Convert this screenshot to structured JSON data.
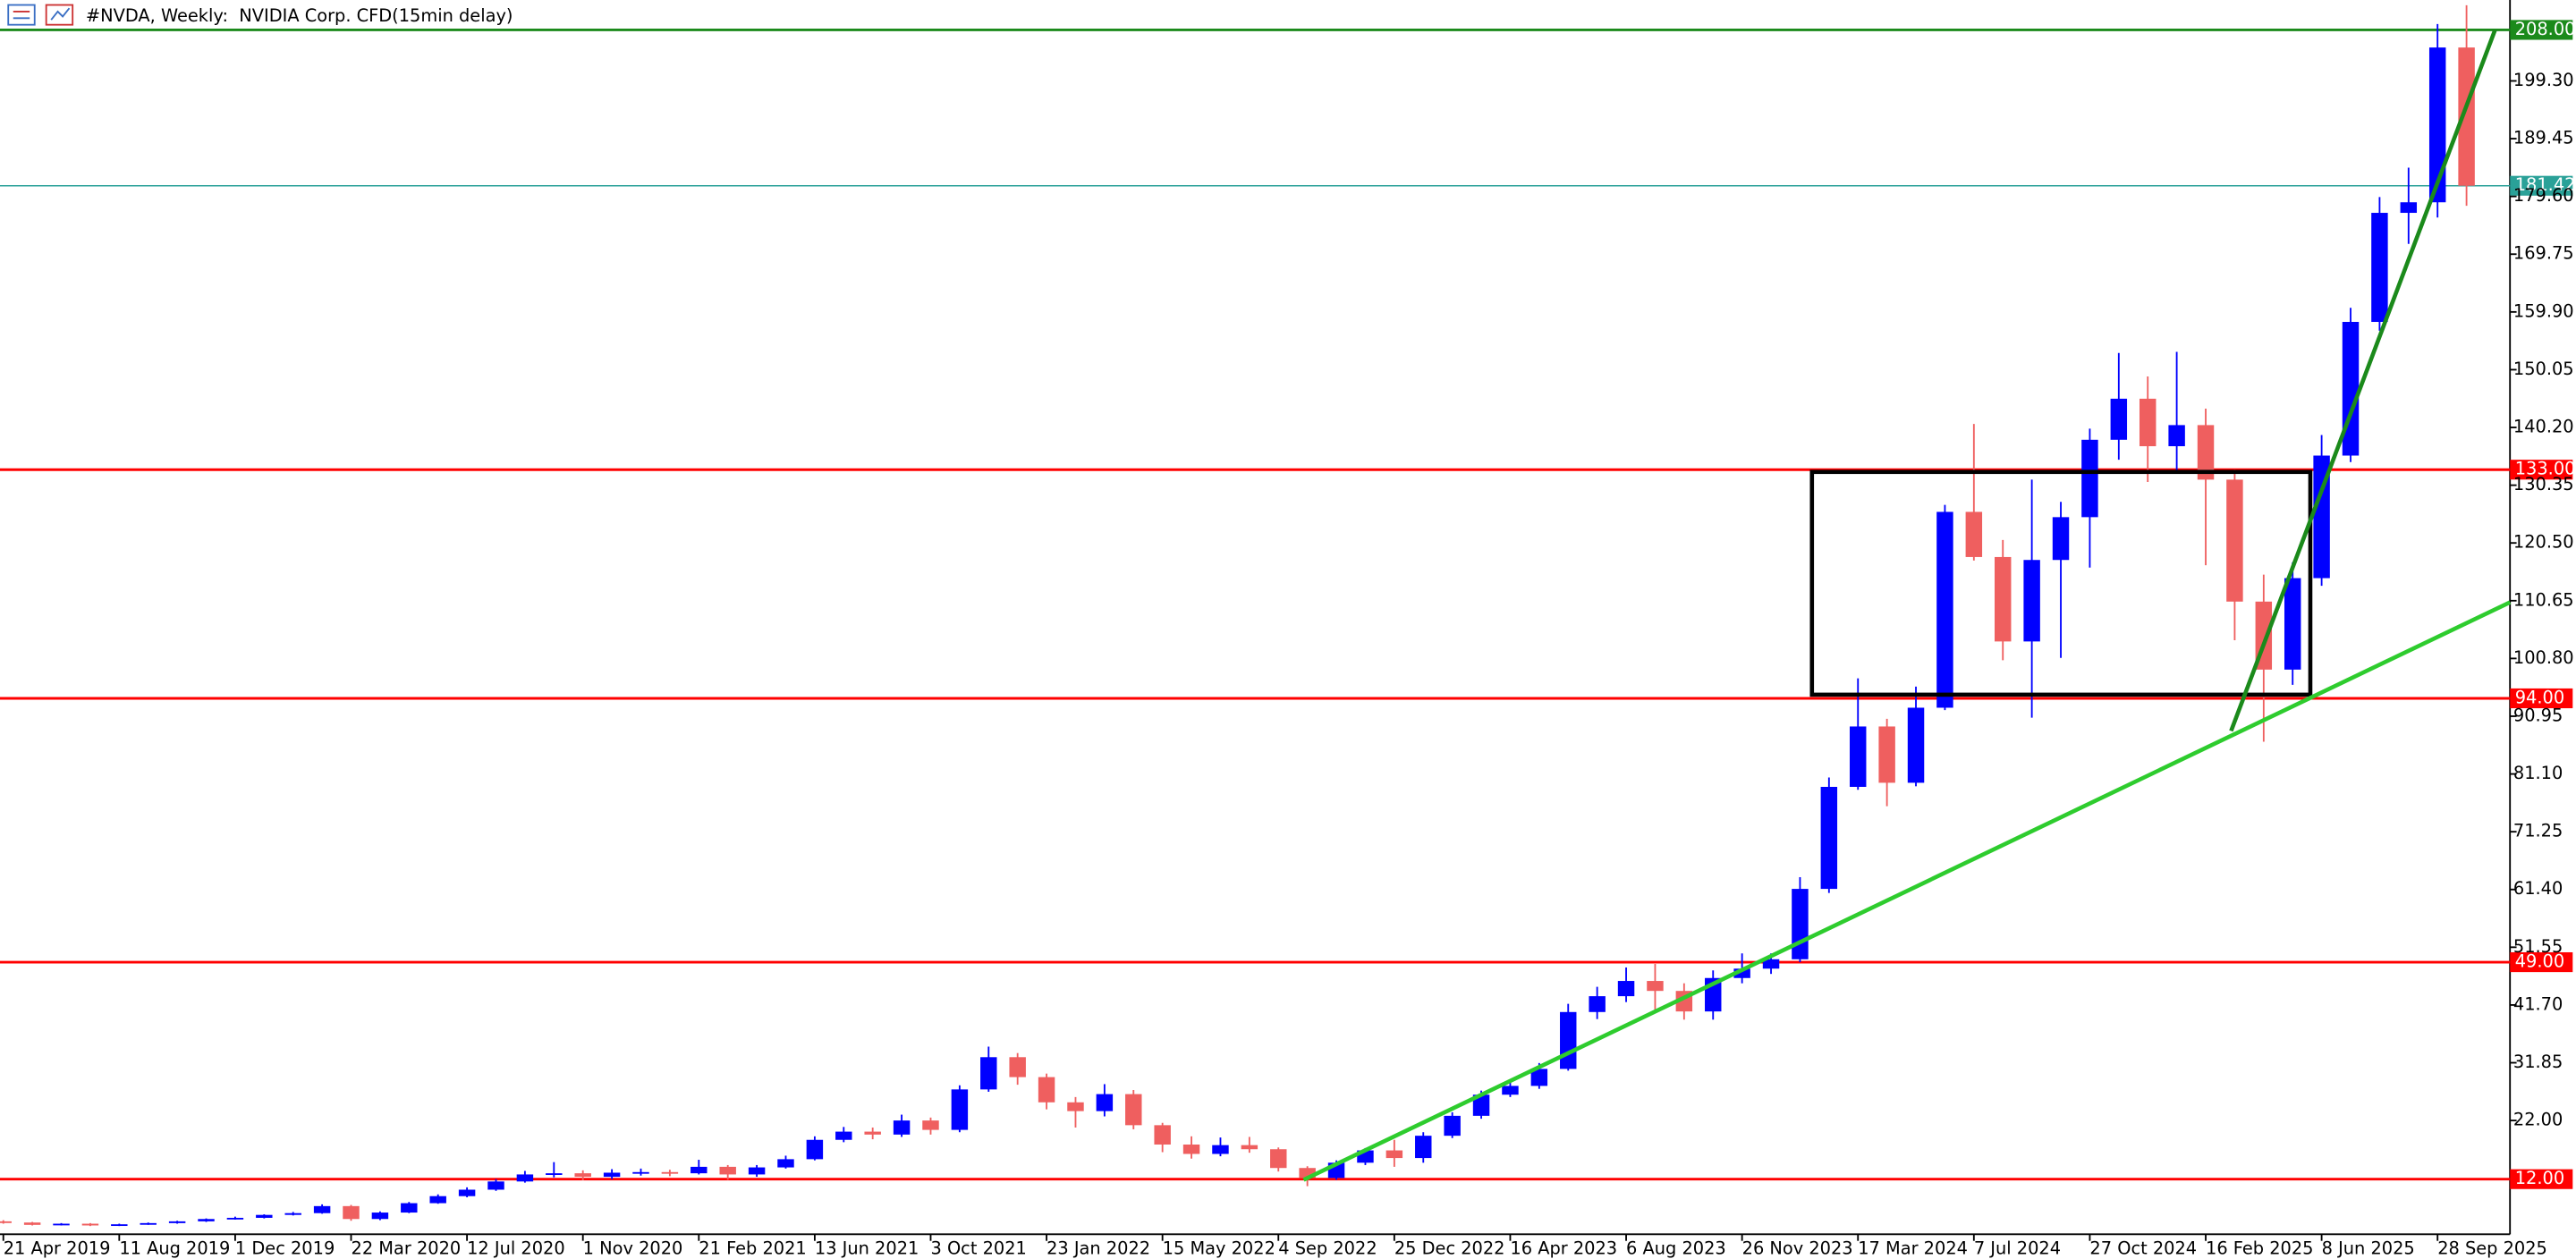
{
  "chart_data": {
    "type": "candlestick",
    "title": "#NVDA, Weekly:  NVIDIA Corp. CFD(15min delay)",
    "xlim": [
      -0.46,
      346
    ],
    "ylim": [
      2.6,
      213.1
    ],
    "xticks": [
      {
        "value": 0,
        "label": "21 Apr 2019"
      },
      {
        "value": 16,
        "label": "11 Aug 2019"
      },
      {
        "value": 32,
        "label": "1 Dec 2019"
      },
      {
        "value": 48,
        "label": "22 Mar 2020"
      },
      {
        "value": 64,
        "label": "12 Jul 2020"
      },
      {
        "value": 80,
        "label": "1 Nov 2020"
      },
      {
        "value": 96,
        "label": "21 Feb 2021"
      },
      {
        "value": 112,
        "label": "13 Jun 2021"
      },
      {
        "value": 128,
        "label": "3 Oct 2021"
      },
      {
        "value": 144,
        "label": "23 Jan 2022"
      },
      {
        "value": 160,
        "label": "15 May 2022"
      },
      {
        "value": 176,
        "label": "4 Sep 2022"
      },
      {
        "value": 192,
        "label": "25 Dec 2022"
      },
      {
        "value": 208,
        "label": "16 Apr 2023"
      },
      {
        "value": 224,
        "label": "6 Aug 2023"
      },
      {
        "value": 240,
        "label": "26 Nov 2023"
      },
      {
        "value": 256,
        "label": "17 Mar 2024"
      },
      {
        "value": 272,
        "label": "7 Jul 2024"
      },
      {
        "value": 288,
        "label": "27 Oct 2024"
      },
      {
        "value": 304,
        "label": "16 Feb 2025"
      },
      {
        "value": 320,
        "label": "8 Jun 2025"
      },
      {
        "value": 336,
        "label": "28 Sep 2025"
      }
    ],
    "yticks": [
      {
        "value": 22,
        "label": "22.00"
      },
      31.85,
      {
        "value": 41.7,
        "label": "41.70"
      },
      51.55,
      {
        "value": 61.4,
        "label": "61.40"
      },
      71.25,
      {
        "value": 81.1,
        "label": "81.10"
      },
      90.95,
      {
        "value": 100.8,
        "label": "100.80"
      },
      110.65,
      {
        "value": 120.5,
        "label": "120.50"
      },
      130.35,
      {
        "value": 140.2,
        "label": "140.20"
      },
      150.05,
      {
        "value": 159.9,
        "label": "159.90"
      },
      169.75,
      {
        "value": 179.6,
        "label": "179.60"
      },
      189.45,
      {
        "value": 199.3,
        "label": "199.30"
      }
    ],
    "up_color": "#0000ff",
    "down_color": "#ef5f5f",
    "x": [
      0,
      4,
      8,
      12,
      16,
      20,
      24,
      28,
      32,
      36,
      40,
      44,
      48,
      52,
      56,
      60,
      64,
      68,
      72,
      76,
      80,
      84,
      88,
      92,
      96,
      100,
      104,
      108,
      112,
      116,
      120,
      124,
      128,
      132,
      136,
      140,
      144,
      148,
      152,
      156,
      160,
      164,
      168,
      172,
      176,
      180,
      184,
      188,
      192,
      196,
      200,
      204,
      208,
      212,
      216,
      220,
      224,
      228,
      232,
      236,
      240,
      244,
      248,
      252,
      256,
      260,
      264,
      268,
      272,
      276,
      280,
      284,
      288,
      292,
      296,
      300,
      304,
      308,
      312,
      316,
      320,
      324,
      328,
      332,
      336,
      340
    ],
    "open": [
      4.8,
      4.6,
      4.2,
      4.4,
      4.1,
      4.3,
      4.5,
      4.8,
      5.2,
      5.4,
      5.9,
      6.2,
      7.4,
      5.2,
      6.3,
      7.9,
      9.1,
      10.2,
      11.6,
      12.8,
      13.0,
      12.4,
      13.1,
      13.2,
      13.0,
      14.1,
      12.8,
      14.0,
      15.4,
      18.7,
      20.1,
      19.6,
      22.0,
      20.4,
      27.3,
      32.8,
      29.4,
      25.1,
      23.6,
      26.5,
      21.2,
      17.9,
      16.3,
      17.8,
      17.1,
      13.9,
      12.2,
      14.8,
      16.9,
      15.6,
      19.4,
      22.8,
      26.4,
      27.9,
      30.8,
      40.5,
      43.2,
      45.8,
      44.1,
      40.6,
      46.3,
      47.9,
      49.5,
      61.5,
      78.9,
      89.2,
      79.6,
      92.4,
      125.8,
      118.1,
      103.7,
      117.6,
      124.9,
      138.1,
      145.1,
      137.0,
      140.6,
      131.3,
      110.5,
      98.9,
      114.5,
      135.4,
      158.2,
      176.8,
      178.6,
      205.0
    ],
    "high": [
      5.0,
      4.7,
      4.5,
      4.5,
      4.4,
      4.6,
      4.9,
      5.3,
      5.6,
      6.0,
      6.4,
      7.7,
      7.6,
      6.5,
      8.1,
      9.4,
      10.6,
      12.0,
      13.4,
      14.9,
      13.5,
      13.7,
      13.8,
      13.6,
      15.3,
      14.4,
      14.4,
      16.0,
      19.3,
      20.9,
      20.8,
      23.0,
      22.5,
      28.0,
      34.6,
      33.5,
      30.0,
      26.0,
      28.2,
      27.2,
      21.6,
      19.3,
      19.1,
      19.2,
      17.4,
      14.2,
      15.2,
      17.3,
      18.7,
      20.0,
      23.4,
      27.1,
      28.6,
      31.8,
      41.9,
      44.8,
      48.1,
      48.7,
      45.4,
      47.6,
      50.5,
      50.5,
      63.5,
      80.5,
      97.4,
      90.5,
      96.0,
      127.0,
      140.8,
      121.0,
      131.3,
      127.5,
      140.0,
      152.9,
      148.9,
      153.1,
      143.4,
      133.0,
      115.1,
      117.2,
      138.9,
      160.6,
      179.5,
      184.5,
      209.0,
      212.2
    ],
    "low": [
      4.4,
      4.1,
      4.1,
      4.0,
      4.0,
      4.2,
      4.4,
      4.7,
      5.1,
      5.3,
      5.8,
      6.1,
      4.9,
      5.0,
      6.2,
      7.8,
      8.9,
      10.0,
      11.4,
      12.3,
      11.8,
      12.0,
      12.6,
      12.5,
      12.8,
      11.9,
      12.4,
      13.8,
      15.2,
      18.3,
      18.8,
      19.2,
      19.6,
      20.0,
      26.9,
      28.1,
      23.9,
      20.8,
      22.7,
      20.5,
      16.6,
      15.5,
      15.9,
      16.5,
      13.3,
      10.8,
      11.9,
      14.4,
      14.1,
      14.8,
      19.0,
      22.3,
      26.0,
      27.4,
      30.5,
      39.3,
      42.2,
      40.4,
      39.2,
      39.2,
      45.4,
      47.0,
      49.0,
      60.8,
      78.4,
      75.6,
      79.0,
      92.0,
      117.5,
      100.5,
      90.7,
      100.9,
      116.3,
      134.7,
      130.9,
      132.9,
      116.7,
      103.9,
      86.6,
      96.3,
      113.2,
      134.3,
      156.7,
      171.5,
      176.0,
      178.0
    ],
    "close": [
      4.6,
      4.2,
      4.4,
      4.1,
      4.3,
      4.5,
      4.8,
      5.2,
      5.4,
      5.9,
      6.2,
      7.4,
      5.2,
      6.3,
      7.9,
      9.1,
      10.2,
      11.6,
      12.8,
      13.0,
      12.4,
      13.1,
      13.2,
      13.0,
      14.1,
      12.8,
      14.0,
      15.4,
      18.7,
      20.1,
      19.6,
      22.0,
      20.4,
      27.3,
      32.8,
      29.4,
      25.1,
      23.6,
      26.5,
      21.2,
      17.9,
      16.3,
      17.8,
      17.1,
      13.9,
      12.2,
      14.8,
      16.9,
      15.6,
      19.4,
      22.8,
      26.4,
      27.9,
      30.8,
      40.5,
      43.2,
      45.8,
      44.1,
      40.6,
      46.3,
      47.9,
      49.5,
      61.5,
      78.9,
      89.2,
      79.6,
      92.4,
      125.8,
      118.1,
      103.7,
      117.6,
      124.9,
      138.1,
      145.1,
      137.0,
      140.6,
      131.3,
      110.5,
      98.9,
      114.5,
      135.4,
      158.2,
      176.8,
      178.6,
      205.0,
      181.42
    ],
    "levels": [
      {
        "value": 208,
        "label": "208.00",
        "color": "#1b8a1b"
      },
      {
        "value": 181.42,
        "color": "#2aa198"
      },
      {
        "value": 133,
        "label": "133.00",
        "color": "#ff0000"
      },
      {
        "value": 94,
        "label": "94.00",
        "color": "#ff0000"
      },
      {
        "value": 49,
        "label": "49.00",
        "color": "#ff0000"
      },
      {
        "value": 12,
        "label": "12.00",
        "color": "#ff0000"
      }
    ]
  }
}
